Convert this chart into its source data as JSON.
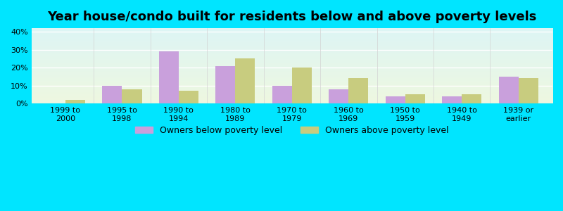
{
  "title": "Year house/condo built for residents below and above poverty levels",
  "categories": [
    "1999 to\n2000",
    "1995 to\n1998",
    "1990 to\n1994",
    "1980 to\n1989",
    "1970 to\n1979",
    "1960 to\n1969",
    "1950 to\n1959",
    "1940 to\n1949",
    "1939 or\nearlier"
  ],
  "below_poverty": [
    0,
    10,
    29,
    21,
    10,
    8,
    4,
    4,
    15
  ],
  "above_poverty": [
    2,
    8,
    7,
    25,
    20,
    14,
    5,
    5,
    14
  ],
  "below_color": "#c9a0dc",
  "above_color": "#c8cc7f",
  "ylim": [
    0,
    42
  ],
  "yticks": [
    0,
    10,
    20,
    30,
    40
  ],
  "yticklabels": [
    "0%",
    "10%",
    "20%",
    "30%",
    "40%"
  ],
  "outer_bg": "#00e5ff",
  "legend_below": "Owners below poverty level",
  "legend_above": "Owners above poverty level",
  "bar_width": 0.35,
  "title_fontsize": 13,
  "tick_fontsize": 8,
  "legend_fontsize": 9
}
